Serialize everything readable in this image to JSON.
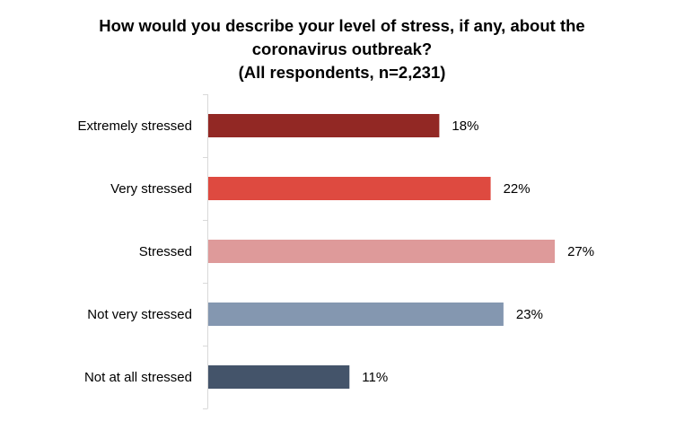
{
  "chart_data": {
    "type": "bar",
    "orientation": "horizontal",
    "title_lines": [
      "How would you describe your level of stress, if any, about the",
      "coronavirus outbreak?",
      "(All respondents, n=2,231)"
    ],
    "categories": [
      "Extremely stressed",
      "Very stressed",
      "Stressed",
      "Not very stressed",
      "Not at all stressed"
    ],
    "values": [
      18,
      22,
      27,
      23,
      11
    ],
    "value_labels": [
      "18%",
      "22%",
      "27%",
      "23%",
      "11%"
    ],
    "unit": "%",
    "bar_colors": [
      "#922824",
      "#DE4A40",
      "#DE9A9A",
      "#8497B0",
      "#44546A"
    ],
    "xlim": [
      0,
      30
    ],
    "grid": false,
    "legend": "none"
  }
}
